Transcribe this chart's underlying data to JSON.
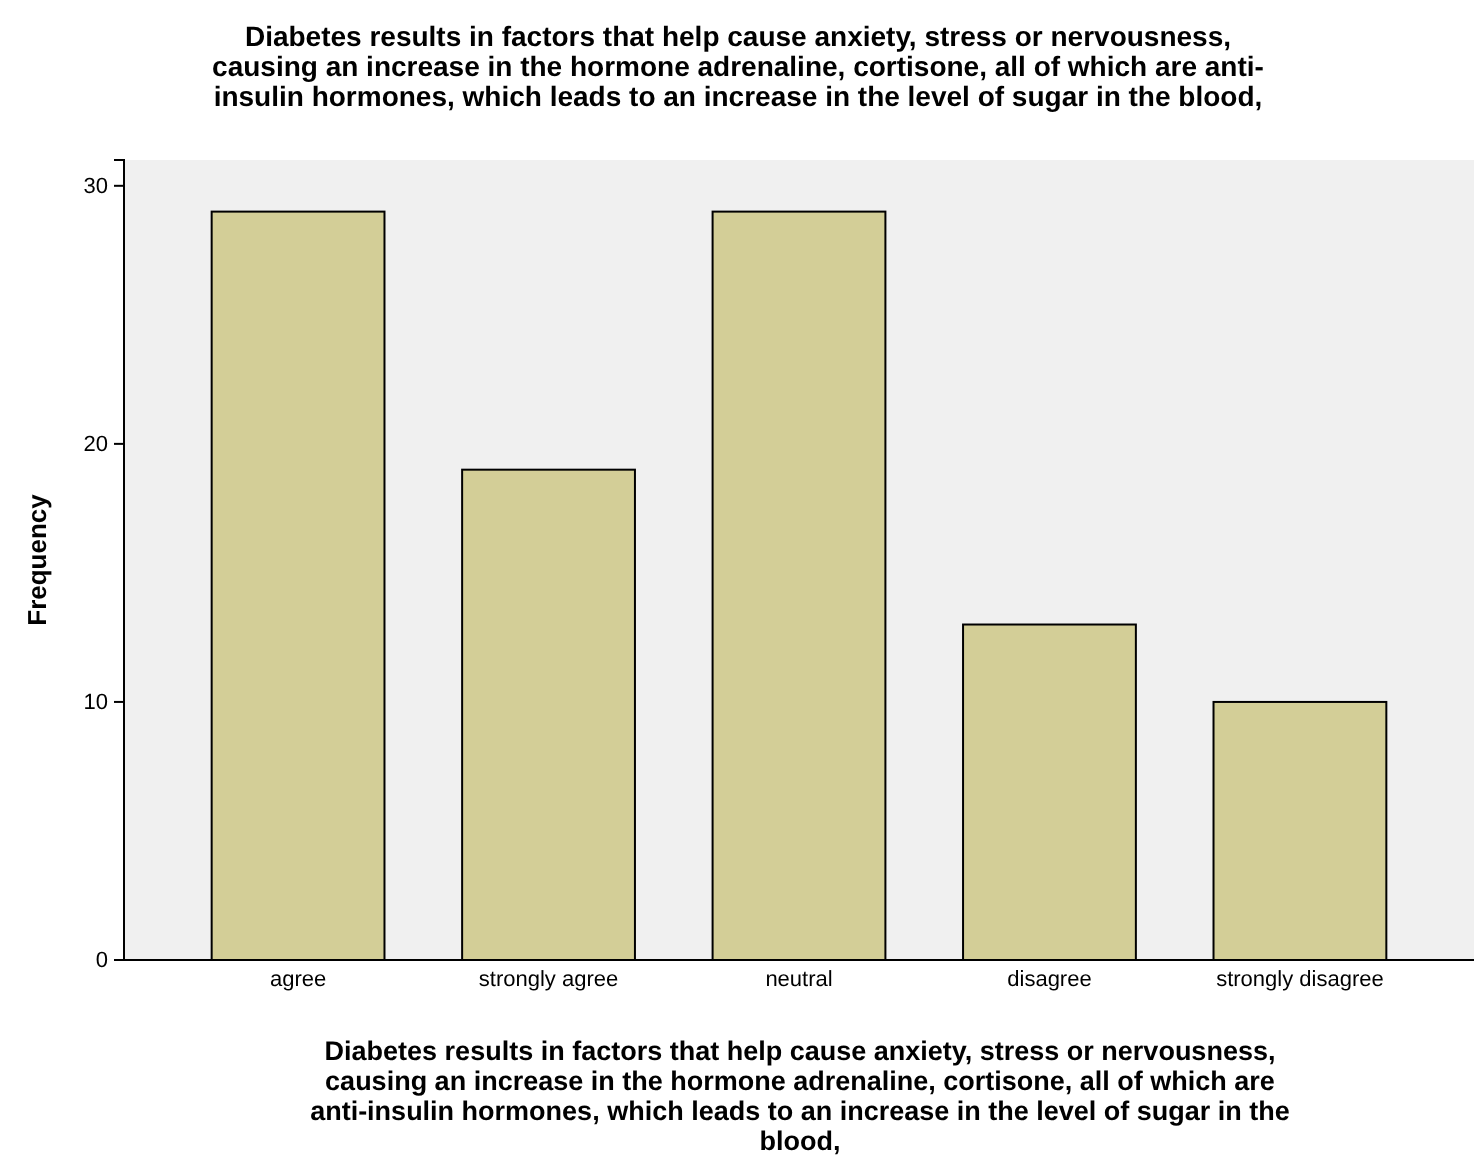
{
  "chart_data": {
    "type": "bar",
    "title": "Diabetes results in factors that help cause anxiety, stress or nervousness,\ncausing an increase in the hormone adrenaline, cortisone, all of which are anti-\ninsulin hormones, which leads to an increase in the level of sugar in the blood,",
    "xlabel": "Diabetes results in factors that help cause anxiety, stress or nervousness,\ncausing an increase in the hormone adrenaline, cortisone, all of which are\nanti-insulin hormones, which leads to an increase in the level of sugar in the\nblood,",
    "ylabel": "Frequency",
    "categories": [
      "agree",
      "strongly agree",
      "neutral",
      "disagree",
      "strongly disagree"
    ],
    "values": [
      29,
      19,
      29,
      13,
      10
    ],
    "color": "#d3ce97",
    "ylim": [
      0,
      31
    ],
    "yticks": [
      0,
      10,
      20,
      30
    ],
    "grid": false
  }
}
